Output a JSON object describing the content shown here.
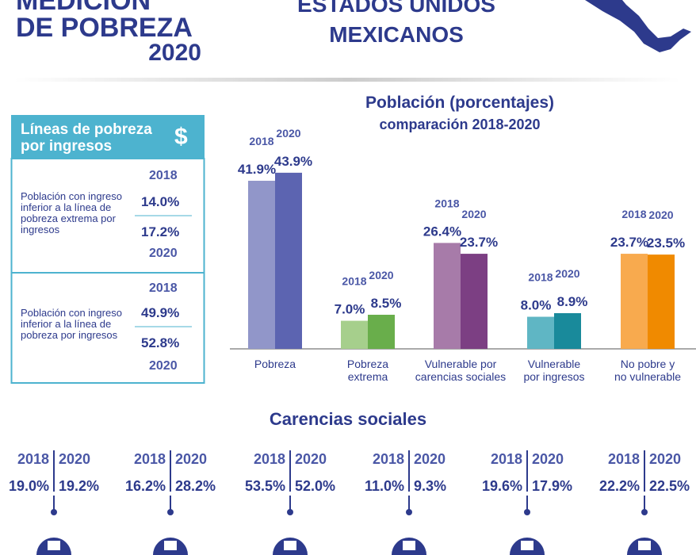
{
  "header": {
    "title_lines": [
      "MEDICIÓN",
      "DE POBREZA",
      "2020"
    ],
    "country_lines": [
      "ESTADOS UNIDOS",
      "MEXICANOS"
    ]
  },
  "income_lines": {
    "title_lines": [
      "Líneas de pobreza",
      "por ingresos"
    ],
    "symbol": "$",
    "rows": [
      {
        "label": "Población con ingreso inferior a la línea de pobreza extrema por ingresos",
        "year_a": "2018",
        "value_a": "14.0%",
        "value_b": "17.2%",
        "year_b": "2020"
      },
      {
        "label": "Población con ingreso inferior a la línea de pobreza por ingresos",
        "year_a": "2018",
        "value_a": "49.9%",
        "value_b": "52.8%",
        "year_b": "2020"
      }
    ]
  },
  "chart_data": {
    "type": "bar",
    "title": "Población (porcentajes)",
    "subtitle": "comparación 2018-2020",
    "categories": [
      "Pobreza",
      "Pobreza\nextrema",
      "Vulnerable por\ncarencias sociales",
      "Vulnerable\npor ingresos",
      "No pobre y\nno vulnerable"
    ],
    "series": [
      {
        "name": "2018",
        "colors": [
          "#9196c9",
          "#a6cf8c",
          "#a77ba9",
          "#5fb6c4",
          "#f8aa4e"
        ],
        "values": [
          41.9,
          7.0,
          26.4,
          8.0,
          23.7
        ],
        "value_labels": [
          "41.9%",
          "7.0%",
          "26.4%",
          "8.0%",
          "23.7%"
        ]
      },
      {
        "name": "2020",
        "colors": [
          "#5c64b1",
          "#69ae4b",
          "#7c3f83",
          "#198a9b",
          "#f08a00"
        ],
        "values": [
          43.9,
          8.5,
          23.7,
          8.9,
          23.5
        ],
        "value_labels": [
          "43.9%",
          "8.5%",
          "23.7%",
          "8.9%",
          "23.5%"
        ]
      }
    ]
  },
  "social_deprivation": {
    "title": "Carencias sociales",
    "years": [
      "2018",
      "2020"
    ],
    "items": [
      [
        "19.0%",
        "19.2%"
      ],
      [
        "16.2%",
        "28.2%"
      ],
      [
        "53.5%",
        "52.0%"
      ],
      [
        "11.0%",
        "9.3%"
      ],
      [
        "19.6%",
        "17.9%"
      ],
      [
        "22.2%",
        "22.5%"
      ]
    ]
  }
}
